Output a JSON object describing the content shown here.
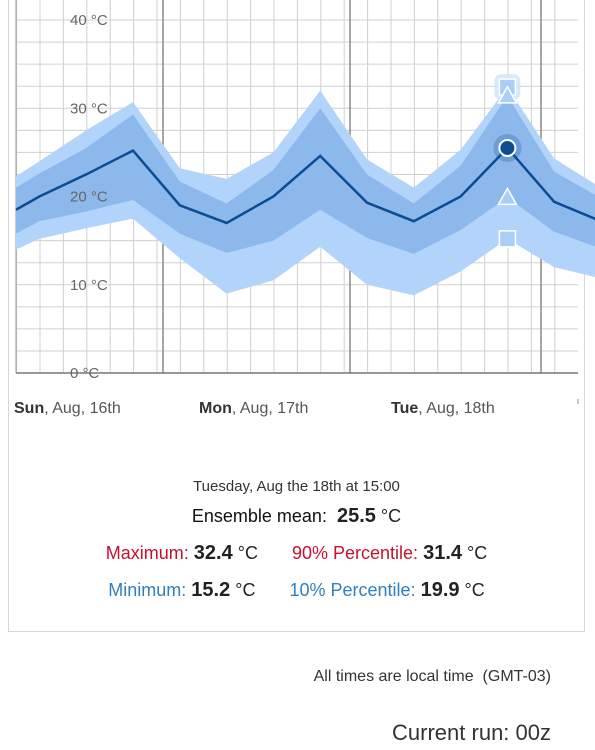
{
  "chart_data": {
    "type": "area",
    "y_ticks": [
      "40 °C",
      "30 °C",
      "20 °C",
      "10 °C",
      "0 °C"
    ],
    "ylim": [
      0,
      40
    ],
    "x_labels": [
      {
        "bold": "Sun",
        "rest": ", Aug, 16th"
      },
      {
        "bold": "Mon",
        "rest": ", Aug, 17th"
      },
      {
        "bold": "Tue",
        "rest": ", Aug, 18th"
      }
    ],
    "x": [
      "Sun 00:00",
      "Sun 03:00",
      "Sun 09:00",
      "Sun 15:00",
      "Sun 21:00",
      "Mon 03:00",
      "Mon 09:00",
      "Mon 15:00",
      "Mon 21:00",
      "Tue 03:00",
      "Tue 09:00",
      "Tue 15:00",
      "Tue 21:00",
      "Wed 03:00",
      "Wed 06:00"
    ],
    "series": [
      {
        "values": [
          14.0,
          15.2,
          16.4,
          17.5,
          13.0,
          9.0,
          10.5,
          14.3,
          10.0,
          8.8,
          11.5,
          15.2,
          12.0,
          10.7,
          10.7
        ]
      },
      {
        "values": [
          15.8,
          17.2,
          18.3,
          19.6,
          15.8,
          13.6,
          15.0,
          18.5,
          15.3,
          13.5,
          16.2,
          19.9,
          16.0,
          14.1,
          13.0
        ]
      },
      {
        "values": [
          18.5,
          20.0,
          22.5,
          25.2,
          19.0,
          17.0,
          20.0,
          24.6,
          19.3,
          17.2,
          20.0,
          25.5,
          19.4,
          17.2,
          18.1
        ]
      },
      {
        "values": [
          21.0,
          22.6,
          25.5,
          29.3,
          21.7,
          19.2,
          23.0,
          30.0,
          22.5,
          19.2,
          23.5,
          31.4,
          22.8,
          19.8,
          22.0
        ]
      },
      {
        "values": [
          22.3,
          24.0,
          27.5,
          30.7,
          23.2,
          22.0,
          25.0,
          32.0,
          24.2,
          21.0,
          25.3,
          32.4,
          24.3,
          21.0,
          23.5
        ]
      }
    ],
    "highlight_index": 11,
    "colors": {
      "outer": "#b3d4fa",
      "inner": "#8cb8ec",
      "mean": "#0e4c92",
      "marker": "#a9cff7"
    }
  },
  "tooltip": {
    "title": "Tuesday, Aug the 18th at 15:00",
    "mean_label": "Ensemble mean:",
    "mean_value": "25.5",
    "max_label": "Maximum:",
    "max_value": "32.4",
    "p90_label": "90% Percentile:",
    "p90_value": "31.4",
    "min_label": "Minimum:",
    "min_value": "15.2",
    "p10_label": "10% Percentile:",
    "p10_value": "19.9",
    "unit": "°C"
  },
  "footer": {
    "timezone": "All times are local time  (GMT-03)",
    "current_run": "Current run: 00z"
  }
}
